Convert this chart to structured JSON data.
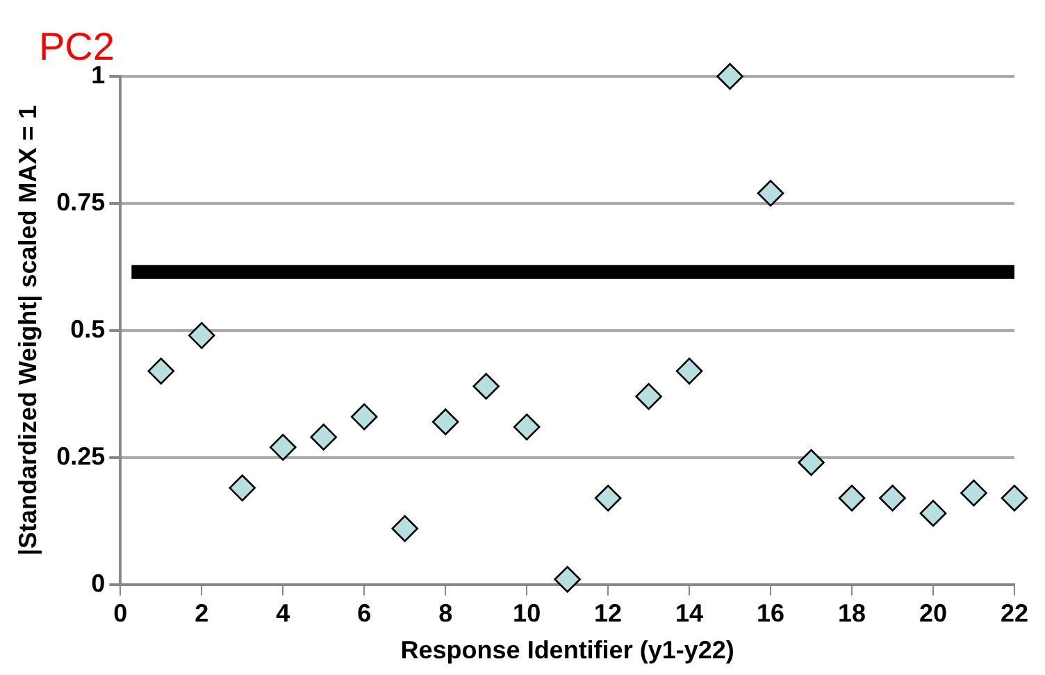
{
  "chart_data": {
    "type": "scatter",
    "title": "PC2",
    "xlabel": "Response Identifier (y1-y22)",
    "ylabel": "|Standardized Weight| scaled MAX = 1",
    "x": [
      1,
      2,
      3,
      4,
      5,
      6,
      7,
      8,
      9,
      10,
      11,
      12,
      13,
      14,
      15,
      16,
      17,
      18,
      19,
      20,
      21,
      22
    ],
    "series": [
      {
        "color": "#b7dfe0",
        "values": [
          0.42,
          0.49,
          0.19,
          0.27,
          0.29,
          0.33,
          0.11,
          0.32,
          0.39,
          0.31,
          0.01,
          0.17,
          0.37,
          0.42,
          1.0,
          0.77,
          0.24,
          0.17,
          0.17,
          0.14,
          0.18,
          0.17
        ]
      }
    ],
    "xlim": [
      0,
      22
    ],
    "xticks": [
      0,
      2,
      4,
      6,
      8,
      10,
      12,
      14,
      16,
      18,
      20,
      22
    ],
    "ylim": [
      0,
      1
    ],
    "yticks": [
      0,
      0.25,
      0.5,
      0.75,
      1
    ],
    "grid": "y",
    "legend": false,
    "marker": "diamond",
    "ref_lines": [
      {
        "axis": "y",
        "value": 0.615,
        "color": "#000000"
      }
    ]
  }
}
